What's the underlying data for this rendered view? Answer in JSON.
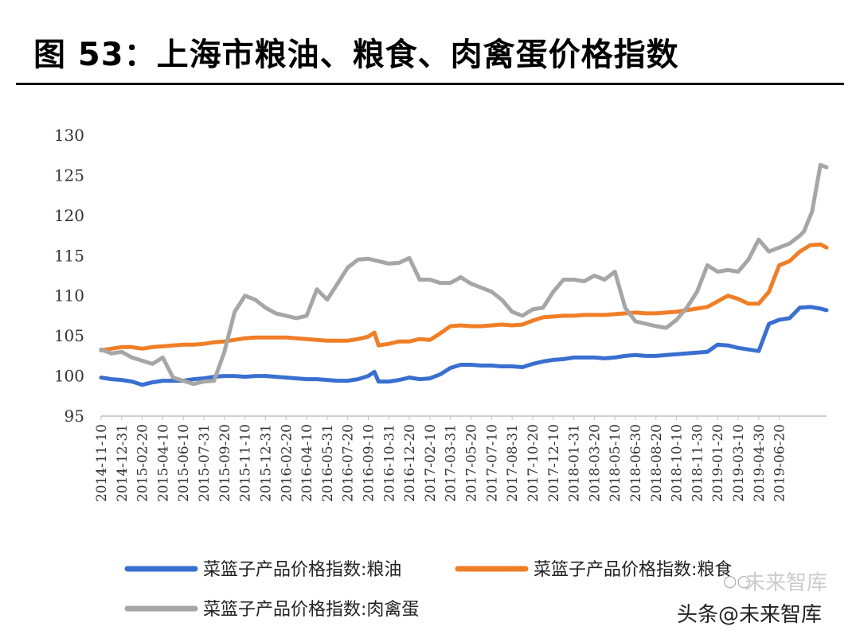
{
  "header": {
    "title": "图 53：上海市粮油、粮食、肉禽蛋价格指数"
  },
  "watermark": {
    "prefix": "头条",
    "handle": "@未来智库",
    "brand": "未来智库",
    "icon": "wechat-icon"
  },
  "chart_data": {
    "type": "line",
    "title": "图 53：上海市粮油、粮食、肉禽蛋价格指数",
    "xlabel": "",
    "ylabel": "",
    "ylim": [
      95,
      130
    ],
    "yticks": [
      95,
      100,
      105,
      110,
      115,
      120,
      125,
      130
    ],
    "grid": false,
    "legend_position": "bottom",
    "xtick_labels": [
      "2014-11-10",
      "2014-12-31",
      "2015-02-20",
      "2015-04-10",
      "2015-06-10",
      "2015-07-31",
      "2015-09-20",
      "2015-11-10",
      "2015-12-31",
      "2016-02-20",
      "2016-04-10",
      "2016-05-31",
      "2016-07-20",
      "2016-09-10",
      "2016-10-31",
      "2016-12-20",
      "2017-02-10",
      "2017-03-31",
      "2017-05-20",
      "2017-07-10",
      "2017-08-31",
      "2017-10-20",
      "2017-12-10",
      "2018-01-31",
      "2018-03-20",
      "2018-05-10",
      "2018-06-30",
      "2018-08-20",
      "2018-10-10",
      "2018-11-30",
      "2019-01-20",
      "2019-03-10",
      "2019-04-30",
      "2019-06-20"
    ],
    "x_domain": [
      0,
      35.3
    ],
    "series": [
      {
        "name": "菜篮子产品价格指数:粮油",
        "color": "#3a6fd0",
        "x": [
          0,
          0.5,
          1,
          1.5,
          2,
          2.5,
          3,
          3.5,
          4,
          4.5,
          5,
          5.5,
          6,
          6.5,
          7,
          7.5,
          8,
          8.5,
          9,
          9.5,
          10,
          10.5,
          11,
          11.5,
          12,
          12.5,
          13,
          13.3,
          13.5,
          14,
          14.5,
          15,
          15.5,
          16,
          16.5,
          17,
          17.5,
          18,
          18.5,
          19,
          19.5,
          20,
          20.5,
          21,
          21.5,
          22,
          22.5,
          23,
          23.5,
          24,
          24.5,
          25,
          25.5,
          26,
          26.5,
          27,
          27.5,
          28,
          28.5,
          29,
          29.5,
          30,
          30.5,
          31,
          31.5,
          32,
          32.5,
          33,
          33.5,
          34,
          34.5,
          35,
          35.3
        ],
        "y": [
          99.8,
          99.6,
          99.5,
          99.3,
          98.9,
          99.2,
          99.4,
          99.4,
          99.4,
          99.6,
          99.7,
          99.9,
          100.0,
          100.0,
          99.9,
          100.0,
          100.0,
          99.9,
          99.8,
          99.7,
          99.6,
          99.6,
          99.5,
          99.4,
          99.4,
          99.6,
          100.0,
          100.5,
          99.3,
          99.3,
          99.5,
          99.8,
          99.6,
          99.7,
          100.2,
          101.0,
          101.4,
          101.4,
          101.3,
          101.3,
          101.2,
          101.2,
          101.1,
          101.5,
          101.8,
          102.0,
          102.1,
          102.3,
          102.3,
          102.3,
          102.2,
          102.3,
          102.5,
          102.6,
          102.5,
          102.5,
          102.6,
          102.7,
          102.8,
          102.9,
          103.0,
          103.9,
          103.8,
          103.5,
          103.3,
          103.1,
          106.5,
          107.0,
          107.2,
          108.5,
          108.6,
          108.4,
          108.2
        ]
      },
      {
        "name": "菜篮子产品价格指数:粮食",
        "color": "#f07e27",
        "x": [
          0,
          0.5,
          1,
          1.5,
          2,
          2.5,
          3,
          3.5,
          4,
          4.5,
          5,
          5.5,
          6,
          6.5,
          7,
          7.5,
          8,
          8.5,
          9,
          9.5,
          10,
          10.5,
          11,
          11.5,
          12,
          12.5,
          13,
          13.3,
          13.5,
          14,
          14.5,
          15,
          15.5,
          16,
          16.5,
          17,
          17.5,
          18,
          18.5,
          19,
          19.5,
          20,
          20.5,
          21,
          21.5,
          22,
          22.5,
          23,
          23.5,
          24,
          24.5,
          25,
          25.5,
          26,
          26.5,
          27,
          27.5,
          28,
          28.5,
          29,
          29.5,
          30,
          30.5,
          31,
          31.5,
          32,
          32.5,
          33,
          33.5,
          34,
          34.5,
          35,
          35.3
        ],
        "y": [
          103.2,
          103.4,
          103.6,
          103.6,
          103.4,
          103.6,
          103.7,
          103.8,
          103.9,
          103.9,
          104.0,
          104.2,
          104.3,
          104.5,
          104.7,
          104.8,
          104.8,
          104.8,
          104.8,
          104.7,
          104.6,
          104.5,
          104.4,
          104.4,
          104.4,
          104.6,
          104.9,
          105.4,
          103.8,
          104.0,
          104.3,
          104.3,
          104.6,
          104.5,
          105.3,
          106.2,
          106.3,
          106.2,
          106.2,
          106.3,
          106.4,
          106.3,
          106.4,
          106.9,
          107.3,
          107.4,
          107.5,
          107.5,
          107.6,
          107.6,
          107.6,
          107.7,
          107.8,
          107.9,
          107.8,
          107.8,
          107.9,
          108.0,
          108.2,
          108.4,
          108.6,
          109.3,
          110.0,
          109.6,
          109.0,
          109.0,
          110.5,
          113.8,
          114.3,
          115.5,
          116.3,
          116.4,
          116.0
        ]
      },
      {
        "name": "菜篮子产品价格指数:肉禽蛋",
        "color": "#a6a6a6",
        "x": [
          0,
          0.5,
          1,
          1.5,
          2,
          2.5,
          3,
          3.5,
          4,
          4.5,
          5,
          5.5,
          6,
          6.5,
          7,
          7.5,
          8,
          8.5,
          9,
          9.5,
          10,
          10.5,
          11,
          11.5,
          12,
          12.5,
          13,
          13.5,
          14,
          14.5,
          15,
          15.5,
          16,
          16.5,
          17,
          17.5,
          18,
          18.5,
          19,
          19.5,
          20,
          20.5,
          21,
          21.5,
          22,
          22.5,
          23,
          23.5,
          24,
          24.5,
          25,
          25.5,
          26,
          26.5,
          27,
          27.5,
          28,
          28.5,
          29,
          29.5,
          30,
          30.5,
          31,
          31.5,
          32,
          32.5,
          33,
          33.5,
          34,
          34.2,
          34.6,
          35.0,
          35.3
        ],
        "y": [
          103.3,
          102.8,
          103.0,
          102.3,
          101.9,
          101.5,
          102.3,
          99.8,
          99.4,
          99.0,
          99.3,
          99.4,
          103.0,
          108.0,
          110.0,
          109.5,
          108.5,
          107.8,
          107.5,
          107.2,
          107.5,
          110.8,
          109.5,
          111.5,
          113.5,
          114.5,
          114.6,
          114.3,
          114.0,
          114.1,
          114.7,
          112.0,
          112.0,
          111.6,
          111.6,
          112.3,
          111.5,
          111.0,
          110.5,
          109.5,
          108.0,
          107.5,
          108.3,
          108.5,
          110.5,
          112.0,
          112.0,
          111.8,
          112.5,
          112.0,
          113.0,
          108.5,
          106.8,
          106.5,
          106.2,
          106.0,
          107.0,
          108.5,
          110.5,
          113.8,
          113.0,
          113.2,
          113.0,
          114.5,
          117.0,
          115.5,
          116.0,
          116.5,
          117.5,
          118.0,
          120.5,
          126.3,
          126.0
        ]
      }
    ]
  }
}
